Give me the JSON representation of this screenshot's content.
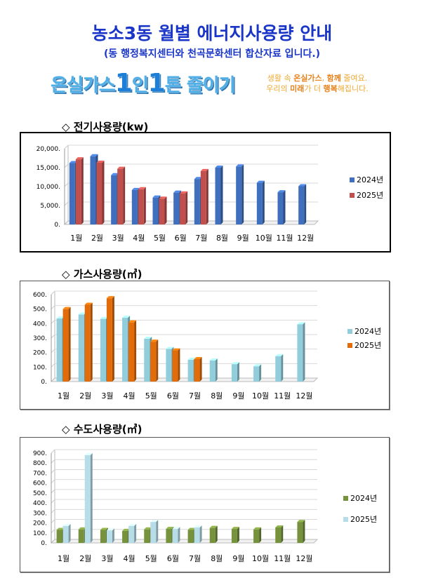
{
  "header": {
    "title": "농소3동 월별 에너지사용량 안내",
    "subtitle": "(동 행정복지센터와 천곡문화센터 합산자료 입니다.)"
  },
  "banner": {
    "slogan_pre": "온실가스",
    "slogan_num1": "1",
    "slogan_mid": "인",
    "slogan_num2": "1",
    "slogan_post": "톤 줄이기",
    "tag_line1_a": "생활 속 ",
    "tag_line1_b": "온실가스",
    "tag_line1_c": ", ",
    "tag_line1_d": "함께",
    "tag_line1_e": " 줄여요.",
    "tag_line2_a": "우리의 ",
    "tag_line2_b": "미래",
    "tag_line2_c": "가 더 ",
    "tag_line2_d": "행복",
    "tag_line2_e": "해집니다."
  },
  "sections": {
    "electric": "◇ 전기사용량(kw)",
    "gas": "◇ 가스사용량(㎥)",
    "water": "◇ 수도사용량(㎥)"
  },
  "chart_data": [
    {
      "type": "bar",
      "categories": [
        "1월",
        "2월",
        "3월",
        "4월",
        "5월",
        "6월",
        "7월",
        "8월",
        "9월",
        "10월",
        "11월",
        "12월"
      ],
      "ylim": [
        0,
        20000
      ],
      "yticks": [
        "0.",
        "5,000.",
        "10,000.",
        "15,000.",
        "20,000."
      ],
      "ytick_values": [
        0,
        5000,
        10000,
        15000,
        20000
      ],
      "legend_position": "right",
      "colors": [
        "#3f6fbd",
        "#c0504d"
      ],
      "series": [
        {
          "name": "2024년",
          "values": [
            16200,
            18000,
            13000,
            9100,
            7100,
            8400,
            12000,
            15000,
            15300,
            11000,
            8500,
            10100
          ]
        },
        {
          "name": "2025년",
          "values": [
            17200,
            16300,
            14700,
            9300,
            6800,
            8200,
            14100,
            null,
            null,
            null,
            null,
            null
          ]
        }
      ]
    },
    {
      "type": "bar",
      "categories": [
        "1월",
        "2월",
        "3월",
        "4월",
        "5월",
        "6월",
        "7월",
        "8월",
        "9월",
        "10월",
        "11월",
        "12월"
      ],
      "ylim": [
        0,
        600
      ],
      "yticks": [
        "0.",
        "100.",
        "200.",
        "300.",
        "400.",
        "500.",
        "600."
      ],
      "ytick_values": [
        0,
        100,
        200,
        300,
        400,
        500,
        600
      ],
      "legend_position": "right",
      "colors": [
        "#92cddc",
        "#e36c0a"
      ],
      "series": [
        {
          "name": "2024년",
          "values": [
            435,
            462,
            432,
            440,
            295,
            225,
            150,
            145,
            120,
            105,
            175,
            395
          ]
        },
        {
          "name": "2025년",
          "values": [
            500,
            530,
            575,
            408,
            275,
            215,
            155,
            null,
            null,
            null,
            null,
            null
          ]
        }
      ]
    },
    {
      "type": "bar",
      "categories": [
        "1월",
        "2월",
        "3월",
        "4월",
        "5월",
        "6월",
        "7월",
        "8월",
        "9월",
        "10월",
        "11월",
        "12월"
      ],
      "ylim": [
        0,
        900
      ],
      "yticks": [
        "0.",
        "100.",
        "200.",
        "300.",
        "400.",
        "500.",
        "600.",
        "700.",
        "800.",
        "900."
      ],
      "ytick_values": [
        0,
        100,
        200,
        300,
        400,
        500,
        600,
        700,
        800,
        900
      ],
      "legend_position": "right",
      "colors": [
        "#76923c",
        "#b7dde8"
      ],
      "series": [
        {
          "name": "2024년",
          "values": [
            130,
            135,
            130,
            120,
            135,
            140,
            130,
            150,
            140,
            135,
            155,
            210
          ]
        },
        {
          "name": "2025년",
          "values": [
            170,
            880,
            125,
            170,
            210,
            140,
            155,
            null,
            null,
            null,
            null,
            null
          ]
        }
      ]
    }
  ]
}
